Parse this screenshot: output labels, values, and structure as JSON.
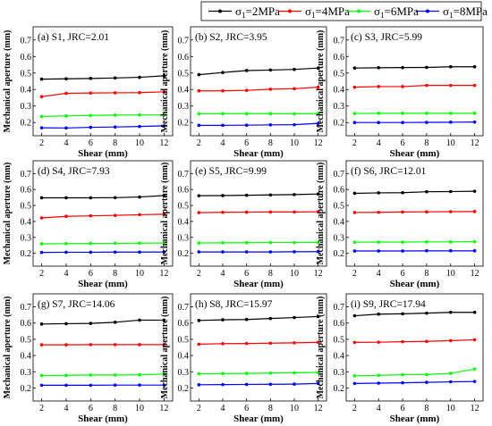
{
  "legend": {
    "entries": [
      {
        "sym": "σ",
        "sub": "1",
        "rest": "=2MPa",
        "color": "#000000"
      },
      {
        "sym": "σ",
        "sub": "1",
        "rest": "=4MPa",
        "color": "#ff0000"
      },
      {
        "sym": "σ",
        "sub": "1",
        "rest": "=6MPa",
        "color": "#00ff00"
      },
      {
        "sym": "σ",
        "sub": "1",
        "rest": "=8MPa",
        "color": "#0000ff"
      }
    ]
  },
  "series_colors": [
    "#000000",
    "#ff0000",
    "#00ff00",
    "#0000ff"
  ],
  "chart_data": [
    {
      "type": "line",
      "title": "(a) S1, JRC=2.01",
      "xlabel": "Shear (mm)",
      "ylabel": "Mechanical aperture (mm)",
      "x": [
        2,
        4,
        6,
        8,
        10,
        12
      ],
      "xlim": [
        1.3,
        12.7
      ],
      "ylim": [
        0.12,
        0.78
      ],
      "xticks": [
        2,
        4,
        6,
        8,
        10,
        12
      ],
      "yticks": [
        0.2,
        0.3,
        0.4,
        0.5,
        0.6,
        0.7
      ],
      "series": [
        {
          "name": "σ1=2MPa",
          "values": [
            0.463,
            0.465,
            0.467,
            0.47,
            0.474,
            0.483
          ]
        },
        {
          "name": "σ1=4MPa",
          "values": [
            0.357,
            0.377,
            0.379,
            0.38,
            0.381,
            0.386
          ]
        },
        {
          "name": "σ1=6MPa",
          "values": [
            0.237,
            0.24,
            0.243,
            0.245,
            0.246,
            0.246
          ]
        },
        {
          "name": "σ1=8MPa",
          "values": [
            0.168,
            0.167,
            0.171,
            0.173,
            0.176,
            0.18
          ]
        }
      ]
    },
    {
      "type": "line",
      "title": "(b) S2, JRC=3.95",
      "xlabel": "Shear (mm)",
      "ylabel": "Mechanical aperture (mm)",
      "x": [
        2,
        4,
        6,
        8,
        10,
        12
      ],
      "xlim": [
        1.3,
        12.7
      ],
      "ylim": [
        0.12,
        0.78
      ],
      "xticks": [
        2,
        4,
        6,
        8,
        10,
        12
      ],
      "yticks": [
        0.2,
        0.3,
        0.4,
        0.5,
        0.6,
        0.7
      ],
      "series": [
        {
          "name": "σ1=2MPa",
          "values": [
            0.49,
            0.503,
            0.515,
            0.518,
            0.522,
            0.53
          ]
        },
        {
          "name": "σ1=4MPa",
          "values": [
            0.392,
            0.392,
            0.395,
            0.402,
            0.405,
            0.414
          ]
        },
        {
          "name": "σ1=6MPa",
          "values": [
            0.253,
            0.254,
            0.254,
            0.254,
            0.253,
            0.254
          ]
        },
        {
          "name": "σ1=8MPa",
          "values": [
            0.183,
            0.183,
            0.184,
            0.186,
            0.187,
            0.195
          ]
        }
      ]
    },
    {
      "type": "line",
      "title": "(c) S3, JRC=5.99",
      "xlabel": "Shear (mm)",
      "ylabel": "Mechanical aperture (mm)",
      "x": [
        2,
        4,
        6,
        8,
        10,
        12
      ],
      "xlim": [
        1.3,
        12.7
      ],
      "ylim": [
        0.12,
        0.78
      ],
      "xticks": [
        2,
        4,
        6,
        8,
        10,
        12
      ],
      "yticks": [
        0.2,
        0.3,
        0.4,
        0.5,
        0.6,
        0.7
      ],
      "series": [
        {
          "name": "σ1=2MPa",
          "values": [
            0.53,
            0.532,
            0.533,
            0.534,
            0.538,
            0.538
          ]
        },
        {
          "name": "σ1=4MPa",
          "values": [
            0.414,
            0.418,
            0.418,
            0.425,
            0.425,
            0.425
          ]
        },
        {
          "name": "σ1=6MPa",
          "values": [
            0.255,
            0.256,
            0.256,
            0.256,
            0.256,
            0.256
          ]
        },
        {
          "name": "σ1=8MPa",
          "values": [
            0.2,
            0.2,
            0.2,
            0.201,
            0.202,
            0.203
          ]
        }
      ]
    },
    {
      "type": "line",
      "title": "(d) S4, JRC=7.93",
      "xlabel": "Shear (mm)",
      "ylabel": "Mechanical aperture (mm)",
      "x": [
        2,
        4,
        6,
        8,
        10,
        12
      ],
      "xlim": [
        1.3,
        12.7
      ],
      "ylim": [
        0.12,
        0.78
      ],
      "xticks": [
        2,
        4,
        6,
        8,
        10,
        12
      ],
      "yticks": [
        0.2,
        0.3,
        0.4,
        0.5,
        0.6,
        0.7
      ],
      "series": [
        {
          "name": "σ1=2MPa",
          "values": [
            0.548,
            0.548,
            0.548,
            0.549,
            0.553,
            0.562
          ]
        },
        {
          "name": "σ1=4MPa",
          "values": [
            0.422,
            0.432,
            0.435,
            0.438,
            0.442,
            0.445
          ]
        },
        {
          "name": "σ1=6MPa",
          "values": [
            0.26,
            0.261,
            0.262,
            0.263,
            0.264,
            0.265
          ]
        },
        {
          "name": "σ1=8MPa",
          "values": [
            0.206,
            0.207,
            0.207,
            0.208,
            0.208,
            0.209
          ]
        }
      ]
    },
    {
      "type": "line",
      "title": "(e) S5, JRC=9.99",
      "xlabel": "Shear (mm)",
      "ylabel": "Mechanical aperture (mm)",
      "x": [
        2,
        4,
        6,
        8,
        10,
        12
      ],
      "xlim": [
        1.3,
        12.7
      ],
      "ylim": [
        0.12,
        0.78
      ],
      "xticks": [
        2,
        4,
        6,
        8,
        10,
        12
      ],
      "yticks": [
        0.2,
        0.3,
        0.4,
        0.5,
        0.6,
        0.7
      ],
      "series": [
        {
          "name": "σ1=2MPa",
          "values": [
            0.561,
            0.562,
            0.564,
            0.566,
            0.568,
            0.572
          ]
        },
        {
          "name": "σ1=4MPa",
          "values": [
            0.455,
            0.457,
            0.458,
            0.459,
            0.459,
            0.46
          ]
        },
        {
          "name": "σ1=6MPa",
          "values": [
            0.265,
            0.266,
            0.267,
            0.268,
            0.268,
            0.269
          ]
        },
        {
          "name": "σ1=8MPa",
          "values": [
            0.209,
            0.209,
            0.209,
            0.209,
            0.21,
            0.211
          ]
        }
      ]
    },
    {
      "type": "line",
      "title": "(f) S6, JRC=12.01",
      "xlabel": "Shear (mm)",
      "ylabel": "Mechanical aperture (mm)",
      "x": [
        2,
        4,
        6,
        8,
        10,
        12
      ],
      "xlim": [
        1.3,
        12.7
      ],
      "ylim": [
        0.12,
        0.78
      ],
      "xticks": [
        2,
        4,
        6,
        8,
        10,
        12
      ],
      "yticks": [
        0.2,
        0.3,
        0.4,
        0.5,
        0.6,
        0.7
      ],
      "series": [
        {
          "name": "σ1=2MPa",
          "values": [
            0.576,
            0.579,
            0.58,
            0.586,
            0.587,
            0.589
          ]
        },
        {
          "name": "σ1=4MPa",
          "values": [
            0.456,
            0.457,
            0.459,
            0.46,
            0.461,
            0.462
          ]
        },
        {
          "name": "σ1=6MPa",
          "values": [
            0.27,
            0.271,
            0.271,
            0.272,
            0.272,
            0.273
          ]
        },
        {
          "name": "σ1=8MPa",
          "values": [
            0.215,
            0.215,
            0.215,
            0.216,
            0.216,
            0.216
          ]
        }
      ]
    },
    {
      "type": "line",
      "title": "(g) S7, JRC=14.06",
      "xlabel": "Shear (mm)",
      "ylabel": "Mechanical aperture (mm)",
      "x": [
        2,
        4,
        6,
        8,
        10,
        12
      ],
      "xlim": [
        1.3,
        12.7
      ],
      "ylim": [
        0.12,
        0.78
      ],
      "xticks": [
        2,
        4,
        6,
        8,
        10,
        12
      ],
      "yticks": [
        0.2,
        0.3,
        0.4,
        0.5,
        0.6,
        0.7
      ],
      "series": [
        {
          "name": "σ1=2MPa",
          "values": [
            0.594,
            0.596,
            0.598,
            0.605,
            0.618,
            0.618
          ]
        },
        {
          "name": "σ1=4MPa",
          "values": [
            0.466,
            0.466,
            0.467,
            0.467,
            0.467,
            0.467
          ]
        },
        {
          "name": "σ1=6MPa",
          "values": [
            0.277,
            0.278,
            0.28,
            0.28,
            0.281,
            0.286
          ]
        },
        {
          "name": "σ1=8MPa",
          "values": [
            0.217,
            0.217,
            0.217,
            0.218,
            0.218,
            0.218
          ]
        }
      ]
    },
    {
      "type": "line",
      "title": "(h) S8, JRC=15.97",
      "xlabel": "Shear (mm)",
      "ylabel": "Mechanical aperture (mm)",
      "x": [
        2,
        4,
        6,
        8,
        10,
        12
      ],
      "xlim": [
        1.3,
        12.7
      ],
      "ylim": [
        0.12,
        0.78
      ],
      "xticks": [
        2,
        4,
        6,
        8,
        10,
        12
      ],
      "yticks": [
        0.2,
        0.3,
        0.4,
        0.5,
        0.6,
        0.7
      ],
      "series": [
        {
          "name": "σ1=2MPa",
          "values": [
            0.616,
            0.62,
            0.622,
            0.628,
            0.634,
            0.64
          ]
        },
        {
          "name": "σ1=4MPa",
          "values": [
            0.47,
            0.473,
            0.474,
            0.476,
            0.478,
            0.481
          ]
        },
        {
          "name": "σ1=6MPa",
          "values": [
            0.288,
            0.289,
            0.29,
            0.292,
            0.294,
            0.296
          ]
        },
        {
          "name": "σ1=8MPa",
          "values": [
            0.22,
            0.221,
            0.222,
            0.223,
            0.224,
            0.228
          ]
        }
      ]
    },
    {
      "type": "line",
      "title": "(i) S9, JRC=17.94",
      "xlabel": "Shear (mm)",
      "ylabel": "Mechanical aperture (mm)",
      "x": [
        2,
        4,
        6,
        8,
        10,
        12
      ],
      "xlim": [
        1.3,
        12.7
      ],
      "ylim": [
        0.12,
        0.78
      ],
      "xticks": [
        2,
        4,
        6,
        8,
        10,
        12
      ],
      "yticks": [
        0.2,
        0.3,
        0.4,
        0.5,
        0.6,
        0.7
      ],
      "series": [
        {
          "name": "σ1=2MPa",
          "values": [
            0.645,
            0.655,
            0.657,
            0.661,
            0.666,
            0.666
          ]
        },
        {
          "name": "σ1=4MPa",
          "values": [
            0.481,
            0.482,
            0.485,
            0.487,
            0.492,
            0.497
          ]
        },
        {
          "name": "σ1=6MPa",
          "values": [
            0.275,
            0.278,
            0.282,
            0.283,
            0.29,
            0.317
          ]
        },
        {
          "name": "σ1=8MPa",
          "values": [
            0.228,
            0.23,
            0.232,
            0.235,
            0.238,
            0.24
          ]
        }
      ]
    }
  ]
}
